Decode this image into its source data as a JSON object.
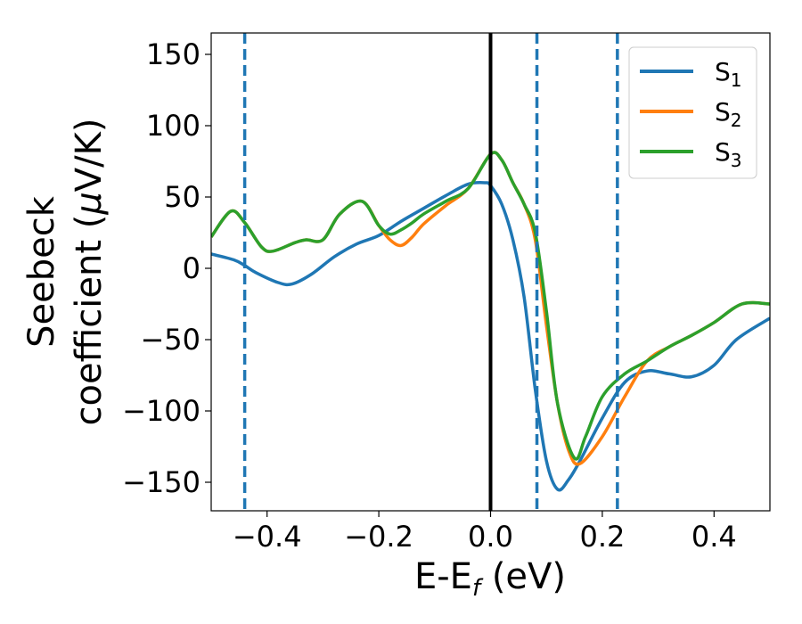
{
  "chart_data": {
    "type": "line",
    "xlabel": {
      "main": "E-E",
      "sub": "f",
      "unit": " (eV)"
    },
    "ylabel": {
      "line1": "Seebeck",
      "line2_pre": "coefficient  (",
      "mu": "μ",
      "line2_post": "V/K)"
    },
    "xlim": [
      -0.5,
      0.5
    ],
    "ylim": [
      -170,
      165
    ],
    "xticks": [
      -0.4,
      -0.2,
      0.0,
      0.2,
      0.4
    ],
    "xtick_labels": [
      "−0.4",
      "−0.2",
      "0.0",
      "0.2",
      "0.4"
    ],
    "yticks": [
      150,
      100,
      50,
      0,
      -50,
      -100,
      -150
    ],
    "ytick_labels": [
      "150",
      "100",
      "50",
      "0",
      "−50",
      "−100",
      "−150"
    ],
    "grid": false,
    "legend_position": "top-right",
    "vertical_lines": [
      {
        "x": -0.44,
        "style": "dashed",
        "color": "#1f77b4"
      },
      {
        "x": 0.0,
        "style": "solid",
        "color": "#000000"
      },
      {
        "x": 0.083,
        "style": "dashed",
        "color": "#1f77b4"
      },
      {
        "x": 0.227,
        "style": "dashed",
        "color": "#1f77b4"
      }
    ],
    "series": [
      {
        "name": "S",
        "sub": "1",
        "color": "#1f77b4",
        "x": [
          -0.5,
          -0.46,
          -0.44,
          -0.42,
          -0.38,
          -0.355,
          -0.32,
          -0.28,
          -0.24,
          -0.2,
          -0.16,
          -0.12,
          -0.08,
          -0.04,
          -0.01,
          0.0,
          0.02,
          0.04,
          0.06,
          0.08,
          0.1,
          0.12,
          0.14,
          0.16,
          0.2,
          0.24,
          0.28,
          0.32,
          0.36,
          0.4,
          0.44,
          0.5
        ],
        "y": [
          10,
          6,
          2,
          -3,
          -10,
          -11,
          -4,
          8,
          17,
          23,
          33,
          42,
          51,
          59,
          60,
          58,
          45,
          20,
          -20,
          -85,
          -135,
          -155,
          -148,
          -135,
          -105,
          -80,
          -72,
          -74,
          -76,
          -68,
          -50,
          -35
        ]
      },
      {
        "name": "S",
        "sub": "2",
        "color": "#ff7f0e",
        "x": [
          -0.5,
          -0.465,
          -0.44,
          -0.41,
          -0.39,
          -0.35,
          -0.33,
          -0.3,
          -0.27,
          -0.23,
          -0.2,
          -0.18,
          -0.16,
          -0.14,
          -0.12,
          -0.08,
          -0.04,
          0.0,
          0.02,
          0.04,
          0.06,
          0.08,
          0.1,
          0.12,
          0.14,
          0.16,
          0.2,
          0.24,
          0.28,
          0.32,
          0.36,
          0.4,
          0.45,
          0.5
        ],
        "y": [
          22,
          40,
          32,
          15,
          12,
          18,
          20,
          20,
          38,
          47,
          30,
          20,
          16,
          22,
          31,
          44,
          56,
          80,
          76,
          60,
          45,
          20,
          -40,
          -95,
          -128,
          -137,
          -118,
          -90,
          -65,
          -55,
          -47,
          -38,
          -25,
          -25
        ]
      },
      {
        "name": "S",
        "sub": "3",
        "color": "#2ca02c",
        "x": [
          -0.5,
          -0.465,
          -0.44,
          -0.41,
          -0.39,
          -0.35,
          -0.33,
          -0.3,
          -0.27,
          -0.23,
          -0.2,
          -0.18,
          -0.16,
          -0.14,
          -0.12,
          -0.08,
          -0.04,
          0.0,
          0.02,
          0.04,
          0.06,
          0.08,
          0.1,
          0.12,
          0.15,
          0.17,
          0.2,
          0.24,
          0.28,
          0.32,
          0.36,
          0.4,
          0.45,
          0.5
        ],
        "y": [
          22,
          40,
          32,
          15,
          12,
          18,
          20,
          20,
          38,
          47,
          30,
          24,
          27,
          32,
          38,
          47,
          56,
          80,
          76,
          60,
          45,
          25,
          -30,
          -95,
          -133,
          -118,
          -90,
          -74,
          -65,
          -55,
          -47,
          -38,
          -25,
          -25
        ]
      }
    ]
  }
}
